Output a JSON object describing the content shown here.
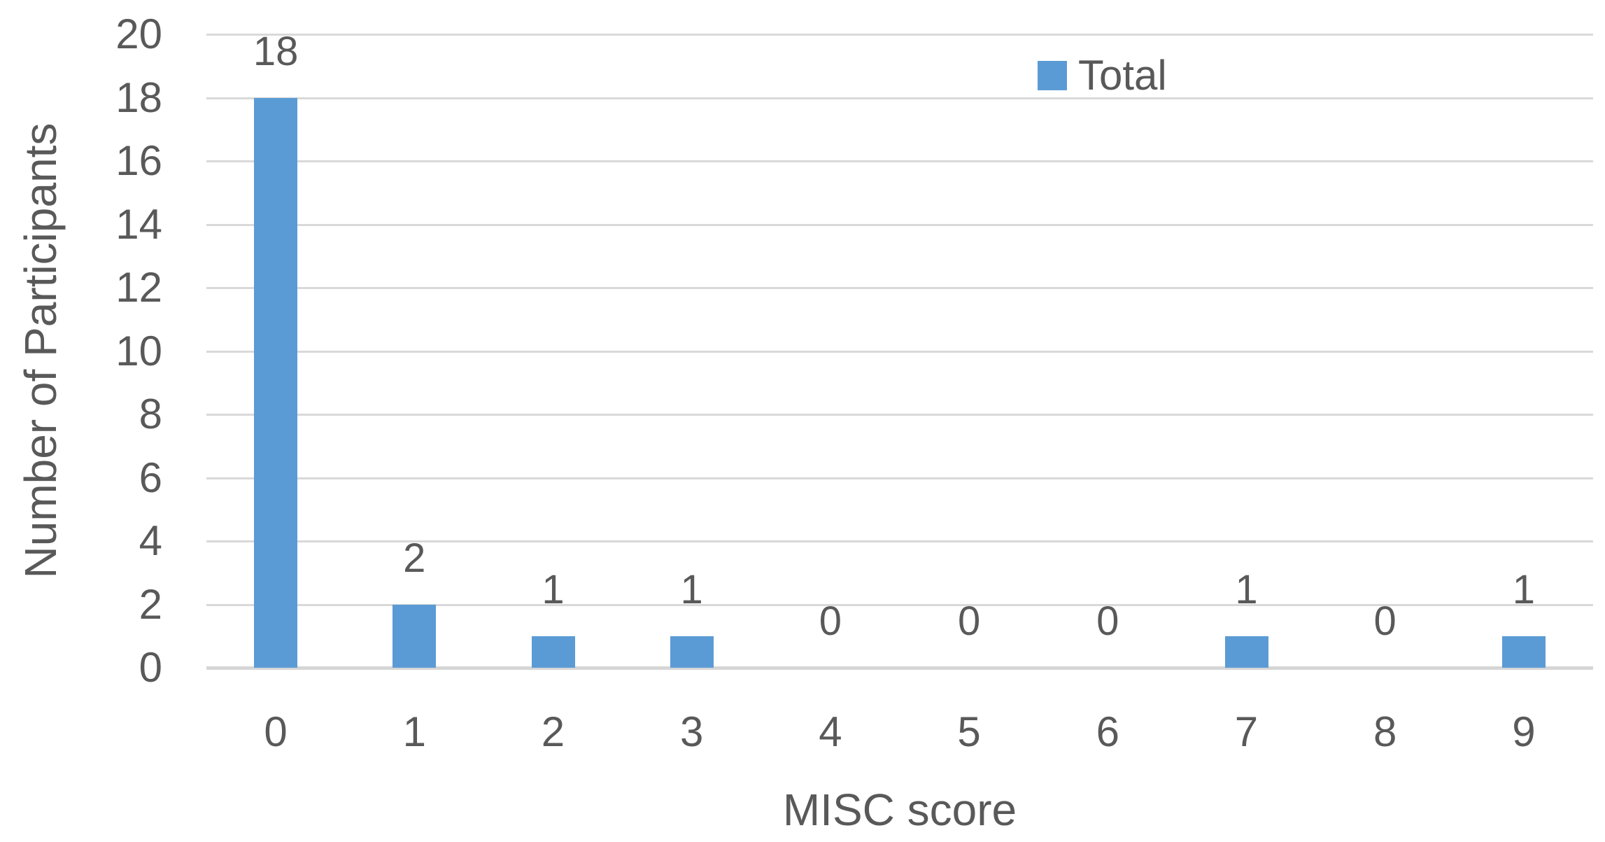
{
  "colors": {
    "bar": "#5B9BD5",
    "gridline": "#D9D9D9",
    "axis_line": "#D6D6D6",
    "text": "#595959",
    "background": "#FFFFFF"
  },
  "legend": {
    "label": "Total",
    "position": "top-right",
    "swatch": "blue-square"
  },
  "chart_data": {
    "type": "bar",
    "title": "",
    "xlabel": "MISC score",
    "ylabel": "Number of Participants",
    "categories": [
      "0",
      "1",
      "2",
      "3",
      "4",
      "5",
      "6",
      "7",
      "8",
      "9"
    ],
    "series": [
      {
        "name": "Total",
        "values": [
          18,
          2,
          1,
          1,
          0,
          0,
          0,
          1,
          0,
          1
        ]
      }
    ],
    "data_labels": [
      "18",
      "2",
      "1",
      "1",
      "0",
      "0",
      "0",
      "1",
      "0",
      "1"
    ],
    "yticks": [
      0,
      2,
      4,
      6,
      8,
      10,
      12,
      14,
      16,
      18,
      20
    ],
    "ylim": [
      0,
      20
    ],
    "ytick_step": 2,
    "grid": true,
    "legend_position": "top"
  }
}
